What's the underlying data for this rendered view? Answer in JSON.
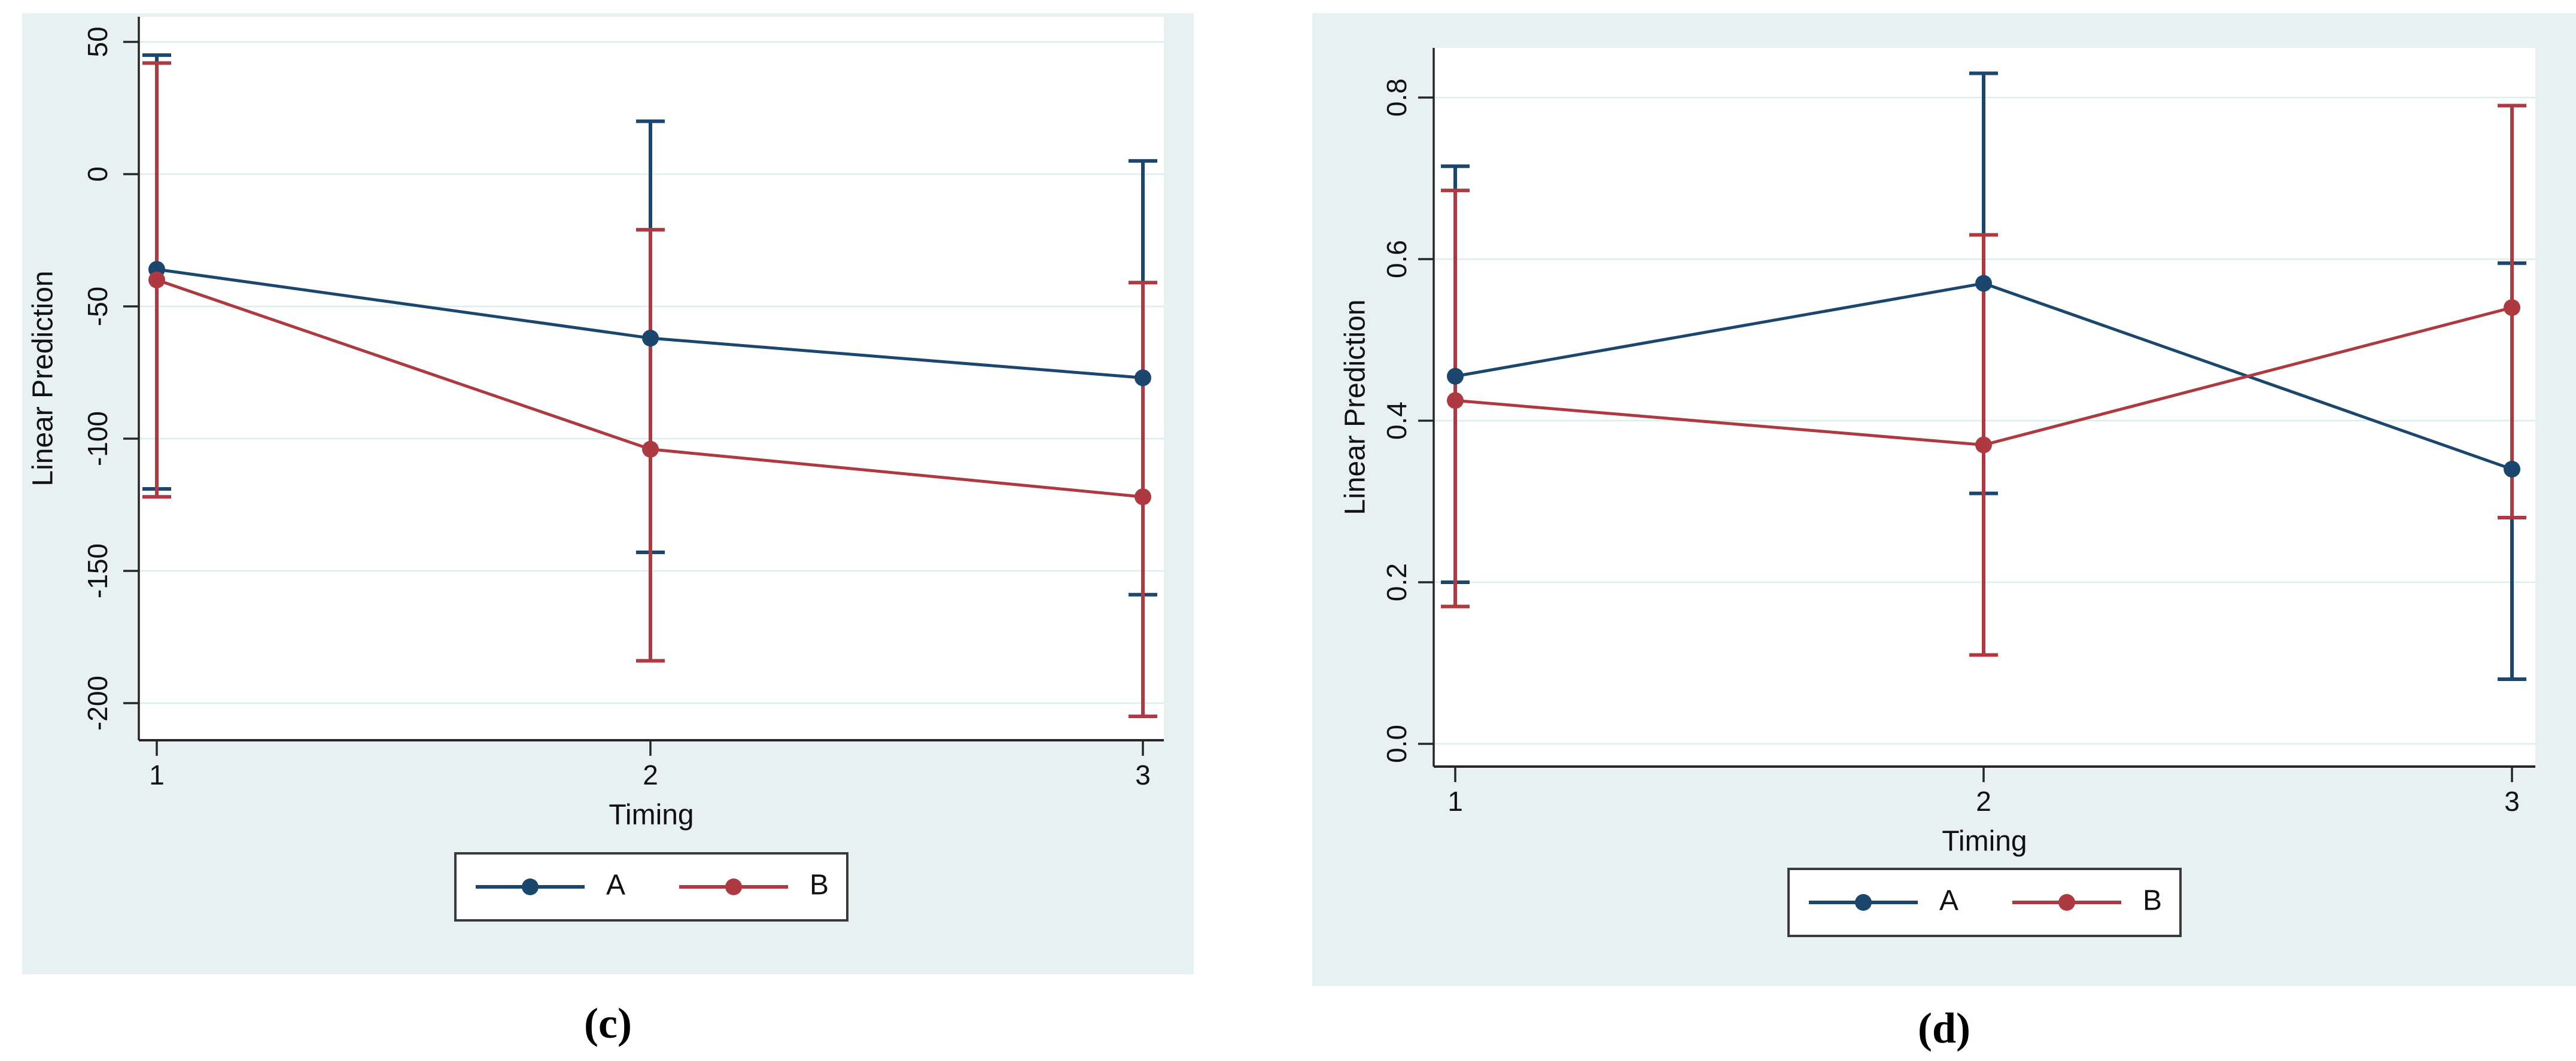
{
  "figure": {
    "captions": [
      {
        "id": "c",
        "label": "(c)"
      },
      {
        "id": "d",
        "label": "(d)"
      }
    ]
  },
  "colors": {
    "series_a": "#1b476e",
    "series_b": "#ac3a40",
    "panel_background": "#e8f1f1",
    "plot_background": "#ffffff",
    "gridline": "#ddecec",
    "axis": "#262626",
    "text": "#111111",
    "legend_border": "#3a3a3a"
  },
  "chart_data": [
    {
      "id": "c",
      "type": "line",
      "title": "",
      "xlabel": "Timing",
      "ylabel": "Linear Prediction",
      "x": [
        1,
        2,
        3
      ],
      "x_tick_labels": [
        "1",
        "2",
        "3"
      ],
      "y_ticks": [
        50,
        0,
        -50,
        -100,
        -150,
        -200
      ],
      "y_tick_labels": [
        "50",
        "0",
        "-50",
        "-100",
        "-150",
        "-200"
      ],
      "ylim": [
        -214.5,
        59.6
      ],
      "grid": true,
      "error_bars": true,
      "legend_position": "bottom-center",
      "series": [
        {
          "name": "A",
          "color": "#1b476e",
          "values": [
            -36,
            -62,
            -77
          ],
          "ci_low": [
            -119,
            -143,
            -159
          ],
          "ci_high": [
            45,
            20,
            5
          ]
        },
        {
          "name": "B",
          "color": "#ac3a40",
          "values": [
            -40,
            -104,
            -122
          ],
          "ci_low": [
            -122,
            -184,
            -205
          ],
          "ci_high": [
            42,
            -21,
            -41
          ]
        }
      ]
    },
    {
      "id": "d",
      "type": "line",
      "title": "",
      "xlabel": "Timing",
      "ylabel": "Linear Prediction",
      "x": [
        1,
        2,
        3
      ],
      "x_tick_labels": [
        "1",
        "2",
        "3"
      ],
      "y_ticks": [
        0.8,
        0.6,
        0.4,
        0.2,
        0.0
      ],
      "y_tick_labels": [
        "0.8",
        "0.6",
        "0.4",
        "0.2",
        "0.0"
      ],
      "ylim": [
        -0.028,
        0.861
      ],
      "grid": true,
      "error_bars": true,
      "legend_position": "bottom-center",
      "series": [
        {
          "name": "A",
          "color": "#1b476e",
          "values": [
            0.455,
            0.57,
            0.34
          ],
          "ci_low": [
            0.2,
            0.31,
            0.08
          ],
          "ci_high": [
            0.715,
            0.83,
            0.595
          ]
        },
        {
          "name": "B",
          "color": "#ac3a40",
          "values": [
            0.425,
            0.37,
            0.54
          ],
          "ci_low": [
            0.17,
            0.11,
            0.28
          ],
          "ci_high": [
            0.685,
            0.63,
            0.79
          ]
        }
      ]
    }
  ]
}
